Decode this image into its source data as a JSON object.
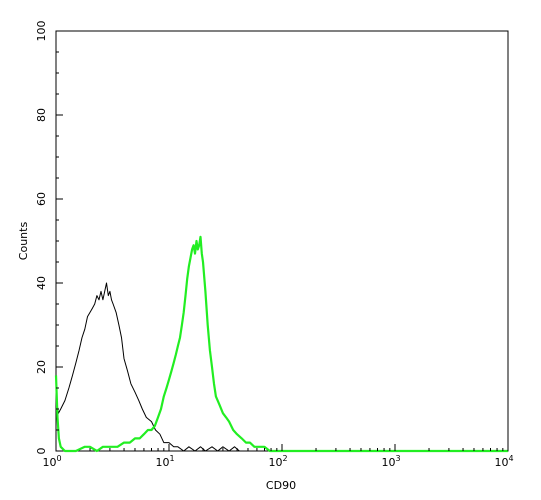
{
  "chart_data": {
    "type": "line",
    "title": "",
    "xlabel": "CD90",
    "ylabel": "Counts",
    "xscale": "log",
    "xlim": [
      1,
      10000
    ],
    "ylim": [
      0,
      100
    ],
    "grid": false,
    "legend": "none",
    "x_ticks": [
      {
        "value": 1,
        "base": "10",
        "exp": "0"
      },
      {
        "value": 10,
        "base": "10",
        "exp": "1"
      },
      {
        "value": 100,
        "base": "10",
        "exp": "2"
      },
      {
        "value": 1000,
        "base": "10",
        "exp": "3"
      },
      {
        "value": 10000,
        "base": "10",
        "exp": "4"
      }
    ],
    "y_ticks": [
      {
        "value": 0,
        "label": "0"
      },
      {
        "value": 20,
        "label": "20"
      },
      {
        "value": 40,
        "label": "40"
      },
      {
        "value": 60,
        "label": "60"
      },
      {
        "value": 80,
        "label": "80"
      },
      {
        "value": 100,
        "label": "100"
      }
    ],
    "series": [
      {
        "color": "#000000",
        "stroke_width": 1,
        "x": [
          1.0,
          1.05,
          1.1,
          1.2,
          1.3,
          1.4,
          1.5,
          1.6,
          1.7,
          1.8,
          1.9,
          2.0,
          2.1,
          2.2,
          2.3,
          2.4,
          2.5,
          2.6,
          2.7,
          2.8,
          2.9,
          3.0,
          3.1,
          3.2,
          3.4,
          3.6,
          3.8,
          4.0,
          4.3,
          4.6,
          5.0,
          5.4,
          5.8,
          6.3,
          7.0,
          7.6,
          8.3,
          9.0,
          10.0,
          11.0,
          12.0,
          13.5,
          15.0,
          17.0,
          19.0,
          21.0,
          24.0,
          27.0,
          30.0,
          34.0,
          38.0,
          42.0,
          50.0,
          60.0,
          80.0,
          100.0,
          1000.0,
          10000.0
        ],
        "y": [
          13,
          9,
          10,
          12,
          15,
          18,
          21,
          24,
          27,
          29,
          32,
          33,
          34,
          35,
          37,
          36,
          38,
          36,
          38,
          40,
          37,
          38,
          36,
          35,
          33,
          30,
          27,
          22,
          19,
          16,
          14,
          12,
          10,
          8,
          7,
          5,
          4,
          2,
          2,
          1,
          1,
          0,
          1,
          0,
          1,
          0,
          1,
          0,
          1,
          0,
          1,
          0,
          0,
          0,
          0,
          0,
          0,
          0
        ]
      },
      {
        "color": "#22ee22",
        "stroke_width": 2.2,
        "x": [
          1.0,
          1.03,
          1.06,
          1.1,
          1.2,
          1.3,
          1.5,
          1.8,
          2.0,
          2.3,
          2.6,
          3.0,
          3.5,
          4.0,
          4.5,
          5.0,
          5.5,
          6.0,
          6.5,
          7.0,
          7.5,
          8.0,
          8.5,
          9.0,
          9.5,
          10.0,
          10.5,
          11.0,
          11.5,
          12.0,
          12.5,
          13.0,
          13.5,
          14.0,
          14.5,
          15.0,
          15.5,
          16.0,
          16.5,
          17.0,
          17.5,
          18.0,
          18.5,
          19.0,
          19.5,
          20.0,
          21.0,
          22.0,
          23.0,
          24.0,
          25.0,
          26.0,
          28.0,
          30.0,
          32.0,
          34.0,
          37.0,
          40.0,
          44.0,
          48.0,
          52.0,
          57.0,
          63.0,
          70.0,
          78.0,
          85.0,
          100.0,
          1000.0,
          10000.0
        ],
        "y": [
          18,
          8,
          3,
          1,
          0,
          0,
          0,
          1,
          1,
          0,
          1,
          1,
          1,
          2,
          2,
          3,
          3,
          4,
          5,
          5,
          6,
          8,
          10,
          13,
          15,
          17,
          19,
          21,
          23,
          25,
          27,
          30,
          33,
          37,
          41,
          44,
          46,
          48,
          49,
          47,
          50,
          48,
          49,
          51,
          47,
          45,
          38,
          30,
          24,
          20,
          16,
          13,
          11,
          9,
          8,
          7,
          5,
          4,
          3,
          2,
          2,
          1,
          1,
          1,
          0,
          0,
          0,
          0,
          0
        ]
      }
    ]
  }
}
